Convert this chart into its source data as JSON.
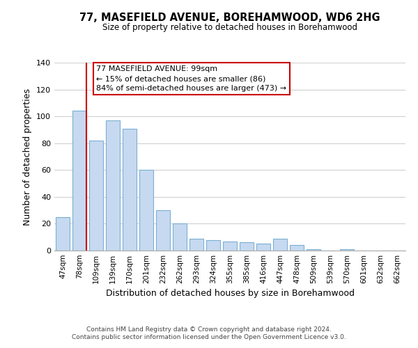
{
  "title": "77, MASEFIELD AVENUE, BOREHAMWOOD, WD6 2HG",
  "subtitle": "Size of property relative to detached houses in Borehamwood",
  "xlabel": "Distribution of detached houses by size in Borehamwood",
  "ylabel": "Number of detached properties",
  "bar_labels": [
    "47sqm",
    "78sqm",
    "109sqm",
    "139sqm",
    "170sqm",
    "201sqm",
    "232sqm",
    "262sqm",
    "293sqm",
    "324sqm",
    "355sqm",
    "385sqm",
    "416sqm",
    "447sqm",
    "478sqm",
    "509sqm",
    "539sqm",
    "570sqm",
    "601sqm",
    "632sqm",
    "662sqm"
  ],
  "bar_values": [
    25,
    104,
    82,
    97,
    91,
    60,
    30,
    20,
    9,
    8,
    7,
    6,
    5,
    9,
    4,
    1,
    0,
    1,
    0,
    0,
    0
  ],
  "bar_color": "#c6d9f0",
  "bar_edge_color": "#7bafd4",
  "highlight_line_color": "#cc0000",
  "ylim": [
    0,
    140
  ],
  "yticks": [
    0,
    20,
    40,
    60,
    80,
    100,
    120,
    140
  ],
  "annotation_box_text": "77 MASEFIELD AVENUE: 99sqm\n← 15% of detached houses are smaller (86)\n84% of semi-detached houses are larger (473) →",
  "footer_line1": "Contains HM Land Registry data © Crown copyright and database right 2024.",
  "footer_line2": "Contains public sector information licensed under the Open Government Licence v3.0.",
  "background_color": "#ffffff",
  "grid_color": "#d0d0d0"
}
